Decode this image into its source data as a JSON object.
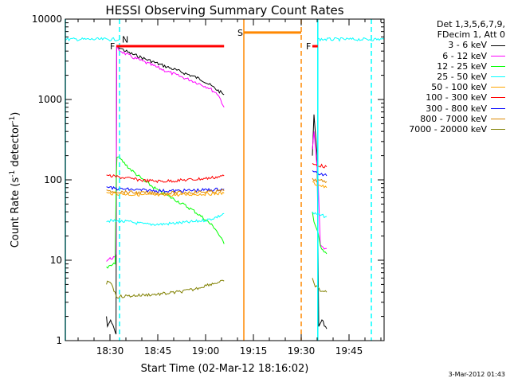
{
  "chart_data": {
    "type": "line",
    "title": "HESSI Observing Summary Count Rates",
    "xlabel": "Start Time (02-Mar-12 18:16:02)",
    "ylabel": "Count Rate (s",
    "ylabel_sup1": "-1",
    "ylabel_mid": " detector",
    "ylabel_sup2": "-1",
    "ylabel_end": ")",
    "y_scale": "log",
    "ylim": [
      1,
      10000
    ],
    "xlim_minutes_since_start": [
      0,
      100
    ],
    "x_ticks": [
      {
        "label": "18:30",
        "minutes": 14
      },
      {
        "label": "18:45",
        "minutes": 29
      },
      {
        "label": "19:00",
        "minutes": 44
      },
      {
        "label": "19:15",
        "minutes": 59
      },
      {
        "label": "19:30",
        "minutes": 74
      },
      {
        "label": "19:45",
        "minutes": 89
      }
    ],
    "y_ticks": [
      {
        "label": "1",
        "value": 1
      },
      {
        "label": "10",
        "value": 10
      },
      {
        "label": "100",
        "value": 100
      },
      {
        "label": "1000",
        "value": 1000
      },
      {
        "label": "10000",
        "value": 10000
      }
    ],
    "legend": {
      "placement": "right",
      "title_lines": [
        "Det 1,3,5,6,7,9,",
        "FDecim 1, Att 0"
      ]
    },
    "series": [
      {
        "name": "3 - 6 keV",
        "color": "#000000",
        "segments": [
          {
            "x": [
              12.9,
              13.2,
              14.2,
              15.9,
              16.1,
              20,
              25,
              30,
              35,
              40,
              43,
              45,
              49.8
            ],
            "y": [
              2,
              1.5,
              1.8,
              1.2,
              4600,
              3800,
              3200,
              2700,
              2300,
              1950,
              1750,
              1550,
              1150
            ]
          },
          {
            "x": [
              77.5,
              78,
              79,
              79.5,
              80.5,
              82
            ],
            "y": [
              200,
              650,
              200,
              1.5,
              1.8,
              1.4
            ]
          }
        ]
      },
      {
        "name": "6 - 12 keV",
        "color": "#ff00ff",
        "segments": [
          {
            "x": [
              12.9,
              15.5,
              15.9,
              16.1,
              20,
              25,
              30,
              35,
              40,
              45,
              48,
              49.8
            ],
            "y": [
              10,
              11,
              12,
              4300,
              3500,
              2900,
              2400,
              2000,
              1700,
              1400,
              1150,
              800
            ]
          },
          {
            "x": [
              77.5,
              78,
              79.3,
              80,
              82
            ],
            "y": [
              240,
              400,
              100,
              15,
              14
            ]
          }
        ]
      },
      {
        "name": "12 - 25 keV",
        "color": "#00ff00",
        "segments": [
          {
            "x": [
              12.9,
              15.6,
              16,
              16.2,
              20,
              25,
              30,
              35,
              40,
              44,
              47,
              49.8
            ],
            "y": [
              8,
              9,
              120,
              200,
              140,
              95,
              70,
              55,
              42,
              32,
              25,
              16
            ]
          },
          {
            "x": [
              77.5,
              78,
              79.3,
              80,
              82
            ],
            "y": [
              40,
              30,
              22,
              15,
              12
            ]
          }
        ]
      },
      {
        "name": "25 - 50 keV",
        "color": "#00ffff",
        "segments": [
          {
            "x": [
              0,
              17
            ],
            "y": [
              5600,
              5600
            ]
          },
          {
            "x": [
              12.9,
              13.5,
              20,
              25,
              30,
              35,
              40,
              45,
              48,
              49.8
            ],
            "y": [
              30,
              31,
              30,
              28,
              28,
              29,
              30,
              32,
              35,
              38
            ]
          },
          {
            "x": [
              77.5,
              78,
              80,
              82
            ],
            "y": [
              40,
              38,
              36,
              35
            ]
          },
          {
            "x": [
              79.2,
              100
            ],
            "y": [
              5600,
              5600
            ]
          }
        ]
      },
      {
        "name": "50 - 100 keV",
        "color": "#ffa500",
        "segments": [
          {
            "x": [
              12.9,
              14,
              20,
              25,
              30,
              35,
              40,
              45,
              49.8
            ],
            "y": [
              70,
              68,
              66,
              65,
              64,
              65,
              66,
              67,
              68
            ]
          },
          {
            "x": [
              77.5,
              78,
              80,
              82
            ],
            "y": [
              95,
              90,
              85,
              80
            ]
          }
        ]
      },
      {
        "name": "100 - 300 keV",
        "color": "#ff0000",
        "segments": [
          {
            "x": [
              12.9,
              14,
              20,
              25,
              30,
              35,
              40,
              45,
              49.8
            ],
            "y": [
              115,
              112,
              104,
              98,
              96,
              98,
              101,
              105,
              112
            ]
          },
          {
            "x": [
              77.5,
              78,
              80,
              82
            ],
            "y": [
              160,
              155,
              150,
              145
            ]
          }
        ]
      },
      {
        "name": "300 - 800 keV",
        "color": "#0000ff",
        "segments": [
          {
            "x": [
              12.9,
              14,
              20,
              25,
              30,
              35,
              40,
              45,
              49.8
            ],
            "y": [
              82,
              79,
              76,
              74,
              73,
              73,
              74,
              75,
              77
            ]
          },
          {
            "x": [
              77.5,
              78,
              80,
              82
            ],
            "y": [
              130,
              125,
              118,
              112
            ]
          }
        ]
      },
      {
        "name": "800 - 7000 keV",
        "color": "#dd8800",
        "segments": [
          {
            "x": [
              12.9,
              14,
              20,
              25,
              30,
              35,
              40,
              45,
              49.8
            ],
            "y": [
              75,
              72,
              70,
              69,
              68,
              69,
              70,
              71,
              73
            ]
          },
          {
            "x": [
              77.5,
              78,
              80,
              82
            ],
            "y": [
              105,
              100,
              97,
              95
            ]
          }
        ]
      },
      {
        "name": "7000 - 20000 keV",
        "color": "#808000",
        "segments": [
          {
            "x": [
              12.9,
              13.2,
              14.5,
              16,
              20,
              25,
              30,
              35,
              40,
              45,
              49.8
            ],
            "y": [
              5,
              5.5,
              5.2,
              3.5,
              3.6,
              3.7,
              3.8,
              4.0,
              4.3,
              5.0,
              5.5
            ]
          },
          {
            "x": [
              77.5,
              78,
              80,
              82
            ],
            "y": [
              6,
              5,
              4.2,
              4
            ]
          }
        ]
      }
    ],
    "flags": [
      {
        "label": "F",
        "color": "#ff0000",
        "x": [
          16,
          49.8
        ],
        "y": 4600
      },
      {
        "label": "F",
        "color": "#ff0000",
        "x": [
          77.5,
          79.2
        ],
        "y": 4600
      },
      {
        "label": "N",
        "color": "#00ffff",
        "x": [
          17,
          17
        ],
        "y": 5600
      },
      {
        "label": "S",
        "color": "#ff8800",
        "x": [
          56,
          74
        ],
        "y": 6800
      }
    ],
    "vertical_lines": [
      {
        "x": 0,
        "color": "#00ffff",
        "style": "solid"
      },
      {
        "x": 17,
        "color": "#00ffff",
        "style": "dashed"
      },
      {
        "x": 79.2,
        "color": "#00ffff",
        "style": "solid"
      },
      {
        "x": 96,
        "color": "#00ffff",
        "style": "dashed"
      },
      {
        "x": 56,
        "color": "#ff8800",
        "style": "solid"
      },
      {
        "x": 74,
        "color": "#ff8800",
        "style": "dashed"
      }
    ]
  },
  "footer_stamp": "3-Mar-2012 01:43"
}
